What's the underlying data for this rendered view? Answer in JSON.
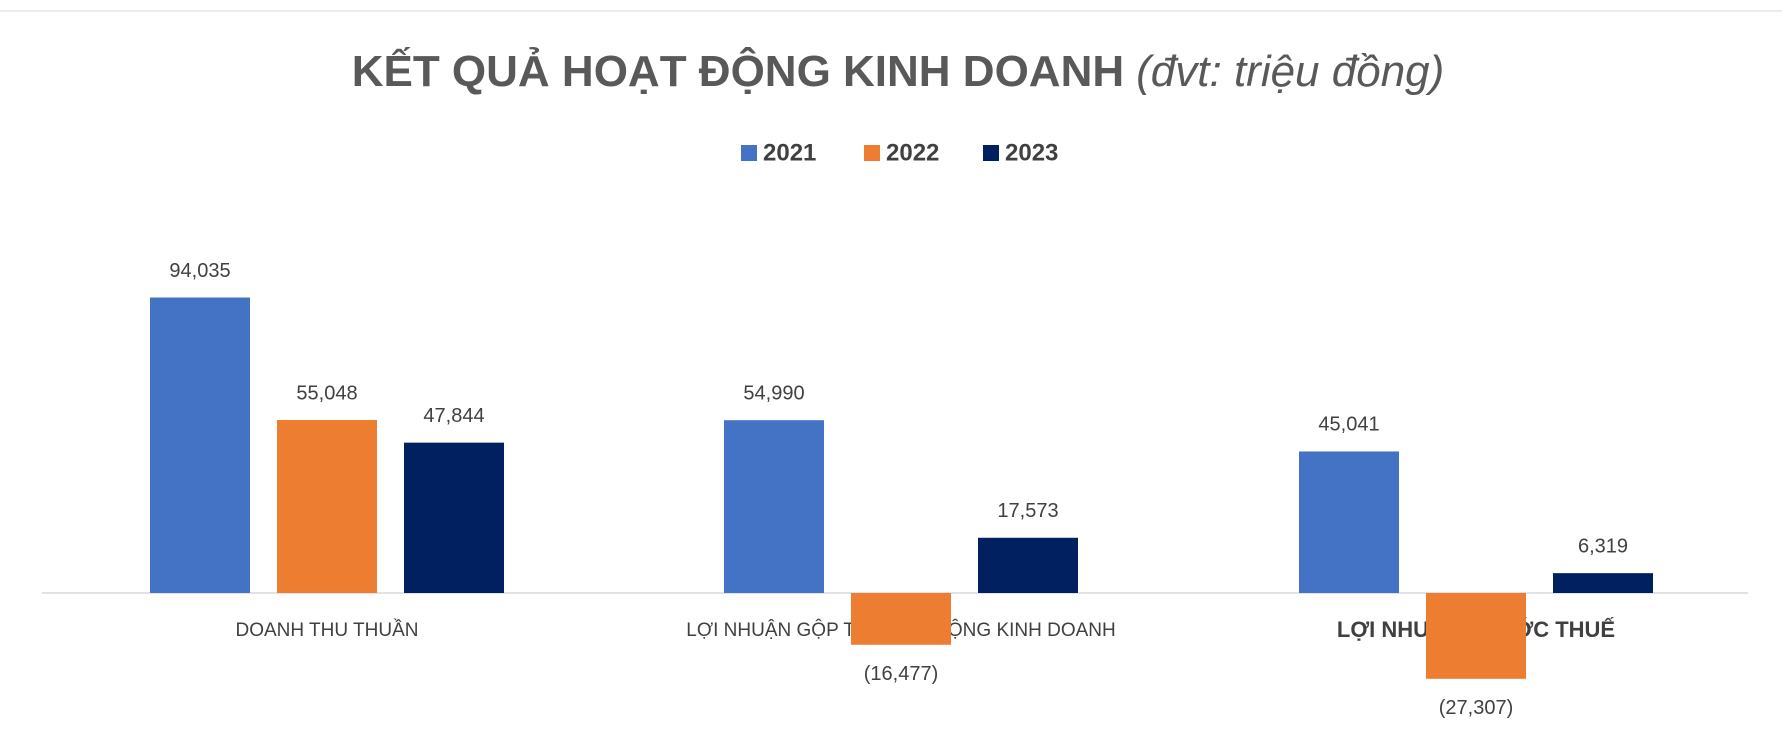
{
  "chart_data": {
    "type": "bar",
    "title": "KẾT QUẢ HOẠT ĐỘNG KINH DOANH",
    "unit": "(đvt: triệu đồng)",
    "categories": [
      "DOANH THU THUẦN",
      "LỢI NHUẬN GỘP TỪ HOẠT ĐỘNG KINH DOANH",
      "LỢI NHUẬN TRƯỚC THUẾ"
    ],
    "series": [
      {
        "name": "2021",
        "color": "#4472c4",
        "values": [
          94035,
          54990,
          45041
        ],
        "value_labels": [
          "94,035",
          "54,990",
          "45,041"
        ]
      },
      {
        "name": "2022",
        "color": "#ed7d31",
        "values": [
          55048,
          -16477,
          -27307
        ],
        "value_labels": [
          "55,048",
          "(16,477)",
          "(27,307)"
        ]
      },
      {
        "name": "2023",
        "color": "#002060",
        "values": [
          47844,
          17573,
          6319
        ],
        "value_labels": [
          "47,844",
          "17,573",
          "6,319"
        ]
      }
    ],
    "legend": "top"
  }
}
